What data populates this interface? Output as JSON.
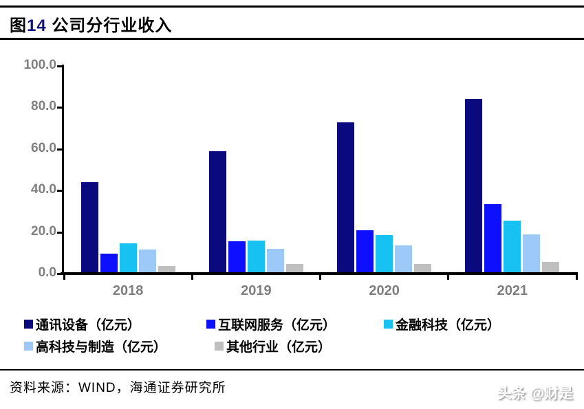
{
  "title": {
    "prefix": "图",
    "number": "14",
    "rest": " 公司分行业收入"
  },
  "chart_data": {
    "type": "bar",
    "title": "图14 公司分行业收入",
    "categories": [
      "2018",
      "2019",
      "2020",
      "2021"
    ],
    "series": [
      {
        "name": "通讯设备（亿元）",
        "color": "#0A0A7E",
        "values": [
          44.0,
          59.0,
          73.0,
          84.0
        ]
      },
      {
        "name": "互联网服务（亿元）",
        "color": "#0F0FFF",
        "values": [
          9.5,
          15.5,
          21.0,
          33.5
        ]
      },
      {
        "name": "金融科技（亿元）",
        "color": "#17C2F2",
        "values": [
          14.5,
          16.0,
          18.5,
          25.5
        ]
      },
      {
        "name": "高科技与制造（亿元）",
        "color": "#9CC9F7",
        "values": [
          11.5,
          12.0,
          13.5,
          19.0
        ]
      },
      {
        "name": "其他行业（亿元）",
        "color": "#BFBFBF",
        "values": [
          3.5,
          4.5,
          4.5,
          5.5
        ]
      }
    ],
    "xlabel": "",
    "ylabel": "",
    "ylim": [
      0,
      100
    ],
    "ytick_labels": [
      "100.0",
      "80.0",
      "60.0",
      "40.0",
      "20.0",
      "0.0"
    ],
    "grid": false,
    "legend_position": "bottom"
  },
  "source": {
    "text": "资料来源：WIND，海通证券研究所"
  },
  "watermark": {
    "text": "头条 @财是"
  }
}
